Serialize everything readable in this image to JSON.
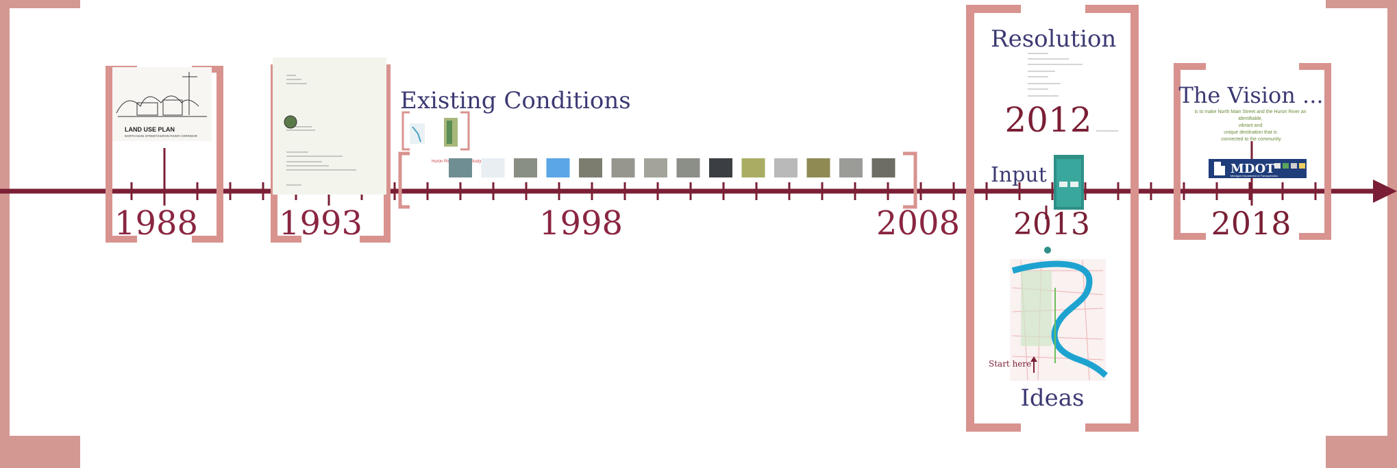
{
  "timeline": {
    "years": [
      "1988",
      "1993",
      "1998",
      "2008",
      "2012",
      "2013",
      "2018"
    ],
    "accent_color": "#7a1f35",
    "bracket_color": "#d8938f"
  },
  "plan_doc": {
    "title": "LAND USE PLAN",
    "subtitle": "NORTH MAIN STREET/HURON RIVER CORRIDOR"
  },
  "existing_conditions": {
    "title": "Existing Conditions",
    "note": "Huron River Corridor\nStudy"
  },
  "resolution": {
    "title": "Resolution"
  },
  "input": {
    "title": "Input"
  },
  "ideas": {
    "title": "Ideas",
    "start_label": "Start here"
  },
  "vision": {
    "title": "The Vision ...",
    "text": "is to make North Main Street and the Huron River an\nidentifiable,\nvibrant and\nunique destination that is\nconnected to the community",
    "logo_text": "MDOT",
    "logo_sub": "Michigan Department of Transportation"
  }
}
